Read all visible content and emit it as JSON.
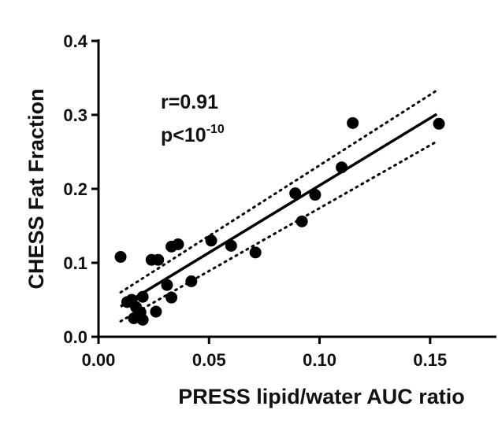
{
  "chart_data": {
    "type": "scatter",
    "title": "",
    "xlabel": "PRESS lipid/water AUC ratio",
    "ylabel": "CHESS Fat Fraction",
    "xlim": [
      0.0,
      0.18
    ],
    "ylim": [
      0.0,
      0.4
    ],
    "x_ticks": [
      0.0,
      0.05,
      0.1,
      0.15
    ],
    "x_tick_labels": [
      "0.00",
      "0.05",
      "0.10",
      "0.15"
    ],
    "y_ticks": [
      0.0,
      0.1,
      0.2,
      0.3,
      0.4
    ],
    "y_tick_labels": [
      "0.0",
      "0.1",
      "0.2",
      "0.3",
      "0.4"
    ],
    "grid": false,
    "points": [
      {
        "x": 0.01,
        "y": 0.108
      },
      {
        "x": 0.013,
        "y": 0.047
      },
      {
        "x": 0.015,
        "y": 0.05
      },
      {
        "x": 0.016,
        "y": 0.025
      },
      {
        "x": 0.017,
        "y": 0.04
      },
      {
        "x": 0.019,
        "y": 0.033
      },
      {
        "x": 0.02,
        "y": 0.054
      },
      {
        "x": 0.02,
        "y": 0.023
      },
      {
        "x": 0.024,
        "y": 0.104
      },
      {
        "x": 0.026,
        "y": 0.034
      },
      {
        "x": 0.027,
        "y": 0.104
      },
      {
        "x": 0.031,
        "y": 0.07
      },
      {
        "x": 0.033,
        "y": 0.122
      },
      {
        "x": 0.033,
        "y": 0.053
      },
      {
        "x": 0.036,
        "y": 0.125
      },
      {
        "x": 0.042,
        "y": 0.075
      },
      {
        "x": 0.051,
        "y": 0.13
      },
      {
        "x": 0.06,
        "y": 0.123
      },
      {
        "x": 0.071,
        "y": 0.114
      },
      {
        "x": 0.089,
        "y": 0.194
      },
      {
        "x": 0.092,
        "y": 0.156
      },
      {
        "x": 0.098,
        "y": 0.192
      },
      {
        "x": 0.11,
        "y": 0.229
      },
      {
        "x": 0.115,
        "y": 0.289
      },
      {
        "x": 0.154,
        "y": 0.288
      }
    ],
    "regression_line": {
      "x": [
        0.01,
        0.153
      ],
      "y": [
        0.041,
        0.301
      ]
    },
    "confidence_band_upper": {
      "x": [
        0.01,
        0.153
      ],
      "y": [
        0.06,
        0.333
      ]
    },
    "confidence_band_lower": {
      "x": [
        0.01,
        0.153
      ],
      "y": [
        0.021,
        0.264
      ]
    },
    "annotations": {
      "r_text": "r=0.91",
      "p_prefix": "p<10",
      "p_exponent": "-10"
    }
  }
}
